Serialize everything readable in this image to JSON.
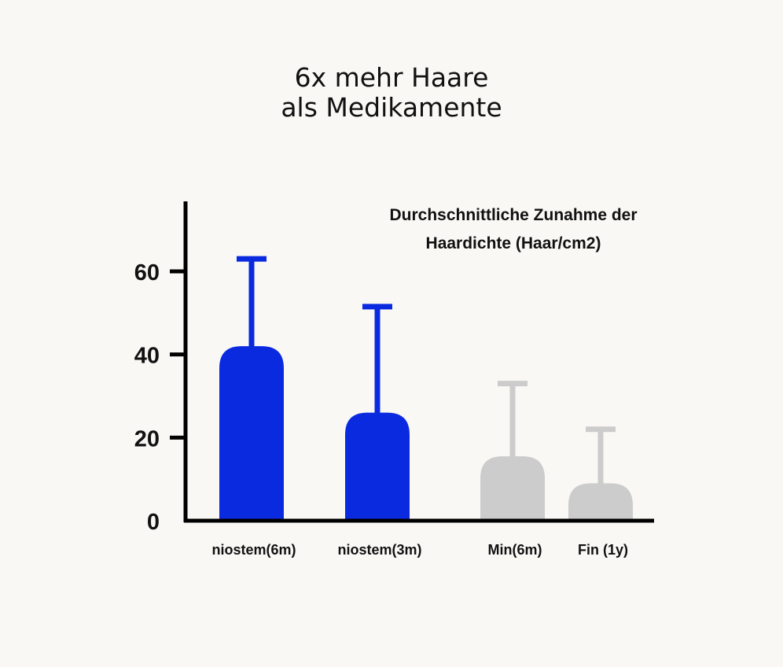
{
  "headline": {
    "line1": "6x mehr Haare",
    "line2": "als Medikamente"
  },
  "chart_data": {
    "type": "bar",
    "title": "Durchschnittliche Zunahme der Haardichte (Haar/cm2)",
    "title_lines": [
      "Durchschnittliche Zunahme der",
      "Haardichte (Haar/cm2)"
    ],
    "categories": [
      "niostem(6m)",
      "niostem(3m)",
      "Min(6m)",
      "Fin (1y)"
    ],
    "values": [
      42,
      26,
      15.5,
      9
    ],
    "error_upper": [
      63,
      51.5,
      33,
      22
    ],
    "colors": [
      "#0a2ae0",
      "#0a2ae0",
      "#cccccc",
      "#cccccc"
    ],
    "yticks": [
      0,
      20,
      40,
      60
    ],
    "ylim": [
      0,
      77
    ],
    "xlabel": "",
    "ylabel": "",
    "grid": false,
    "axis_color": "#000000"
  }
}
